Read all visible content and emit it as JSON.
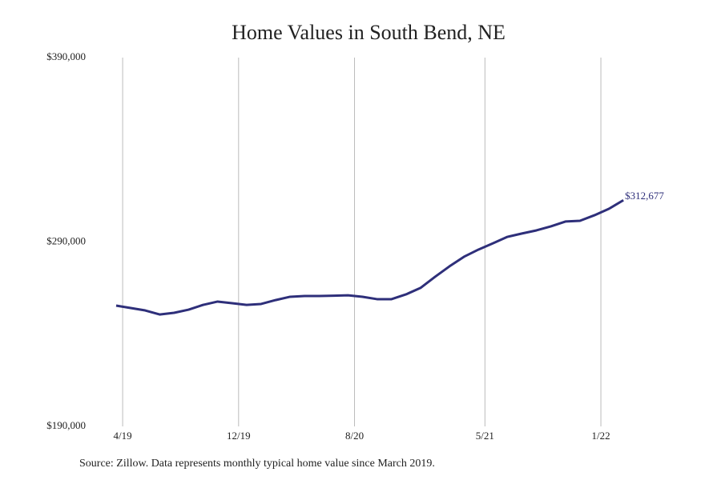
{
  "chart_data": {
    "type": "line",
    "title": "Home Values in South Bend, NE",
    "source": "Source: Zillow. Data represents monthly typical home value since March 2019.",
    "categories": [
      null,
      "4/19",
      null,
      null,
      null,
      null,
      null,
      null,
      null,
      "12/19",
      null,
      null,
      null,
      null,
      null,
      null,
      null,
      "8/20",
      null,
      null,
      null,
      null,
      null,
      null,
      null,
      null,
      "5/21",
      null,
      null,
      null,
      null,
      null,
      null,
      null,
      "1/22",
      null
    ],
    "series": [
      {
        "color": "#2e2f7a",
        "values": [
          255500,
          254200,
          252900,
          250700,
          251600,
          253300,
          255900,
          257700,
          256800,
          255900,
          256400,
          258500,
          260300,
          260700,
          260700,
          260900,
          261100,
          260300,
          259000,
          259000,
          261600,
          265100,
          271100,
          276800,
          282000,
          285900,
          289300,
          292800,
          294600,
          296300,
          298500,
          301100,
          301500,
          304500,
          308000,
          312677
        ],
        "value_labels": [
          null,
          null,
          null,
          null,
          null,
          null,
          null,
          null,
          null,
          null,
          null,
          null,
          null,
          null,
          null,
          null,
          null,
          null,
          null,
          null,
          null,
          null,
          null,
          null,
          null,
          null,
          null,
          null,
          null,
          null,
          null,
          null,
          null,
          null,
          null,
          "$312,677"
        ]
      }
    ],
    "ylim": [
      190000,
      390000
    ],
    "yticks": [
      {
        "value": 190000,
        "label": "$190,000"
      },
      {
        "value": 290000,
        "label": "$290,000"
      },
      {
        "value": 390000,
        "label": "$390,000"
      }
    ],
    "grid": "x"
  }
}
